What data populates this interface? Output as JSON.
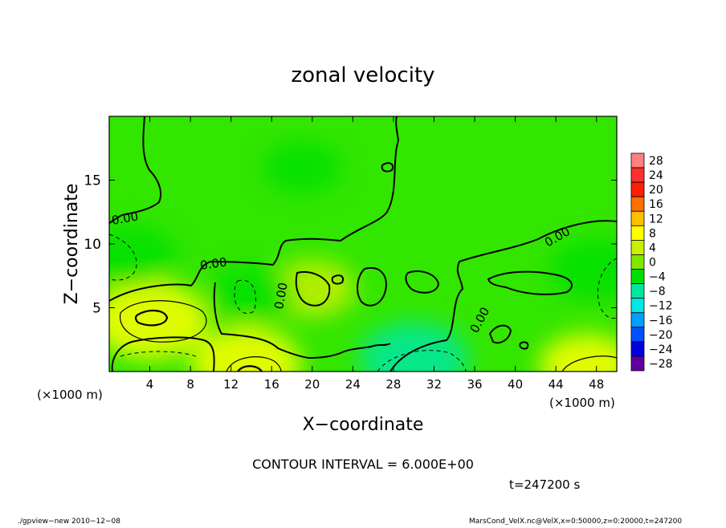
{
  "chart_data": {
    "type": "heatmap",
    "title": "zonal velocity",
    "xlabel": "X−coordinate",
    "ylabel": "Z−coordinate",
    "x_unit_left": "(×1000 m)",
    "x_unit_right": "(×1000 m)",
    "xlim": [
      0,
      50
    ],
    "ylim": [
      0,
      20
    ],
    "x_ticks": [
      4,
      8,
      12,
      16,
      20,
      24,
      28,
      32,
      36,
      40,
      44,
      48
    ],
    "x_tick_labels": [
      "4",
      "8",
      "12",
      "16",
      "20",
      "24",
      "28",
      "32",
      "36",
      "40",
      "44",
      "48"
    ],
    "y_ticks": [
      5,
      10,
      15
    ],
    "y_tick_labels": [
      "5",
      "10",
      "15"
    ],
    "colorbar": {
      "levels": [
        28,
        24,
        20,
        16,
        12,
        8,
        4,
        0,
        -4,
        -8,
        -12,
        -16,
        -20,
        -24,
        -28
      ],
      "labels": [
        "28",
        "24",
        "20",
        "16",
        "12",
        "8",
        "4",
        "0",
        "−4",
        "−8",
        "−12",
        "−16",
        "−20",
        "−24",
        "−28"
      ],
      "colors": [
        "#ff8080",
        "#ff3030",
        "#ff2000",
        "#ff7000",
        "#ffc000",
        "#ffff00",
        "#c8f000",
        "#80e800",
        "#00e000",
        "#00e8a0",
        "#00e8e8",
        "#00a0ff",
        "#0050ff",
        "#0000e0",
        "#6000a0"
      ]
    },
    "zero_contour_labels": [
      "0.00",
      "0.00",
      "0.00",
      "0.00",
      "0.00"
    ],
    "features": [
      {
        "kind": "max",
        "x": 4,
        "z": 4,
        "value": 9
      },
      {
        "kind": "max",
        "x": 13.5,
        "z": 0.6,
        "value": 8
      },
      {
        "kind": "max",
        "x": 20,
        "z": 6.5,
        "value": 5
      },
      {
        "kind": "max",
        "x": 47,
        "z": 0.5,
        "value": 6
      },
      {
        "kind": "min",
        "x": 2,
        "z": 9,
        "value": -6
      },
      {
        "kind": "min",
        "x": 30,
        "z": 1,
        "value": -8
      },
      {
        "kind": "min",
        "x": 14,
        "z": 6,
        "value": -5
      },
      {
        "kind": "min",
        "x": 19,
        "z": 16,
        "value": -4
      },
      {
        "kind": "min",
        "x": 48,
        "z": 8,
        "value": -6
      }
    ],
    "contour_interval_text": "CONTOUR INTERVAL = 6.000E+00",
    "time_text": "t=247200 s"
  },
  "footer": {
    "left": "./gpview−new  2010−12−08",
    "right": "MarsCond_VelX.nc@VelX,x=0:50000,z=0:20000,t=247200"
  }
}
